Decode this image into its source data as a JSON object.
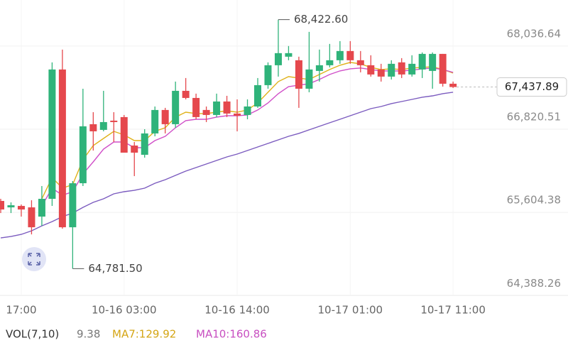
{
  "chart_data": {
    "type": "candlestick",
    "categories": [
      null,
      null,
      "17:00",
      null,
      null,
      null,
      null,
      null,
      null,
      null,
      null,
      null,
      "10-16 03:00",
      null,
      null,
      null,
      null,
      null,
      null,
      null,
      null,
      null,
      null,
      "10-16 14:00",
      null,
      null,
      null,
      null,
      null,
      null,
      null,
      null,
      null,
      null,
      "10-17 01:00",
      null,
      null,
      null,
      null,
      null,
      null,
      null,
      null,
      null,
      "10-17 11:00"
    ],
    "open": [
      65772,
      65678,
      65699,
      65678,
      65543,
      65803,
      67694,
      65387,
      66031,
      66894,
      66811,
      66946,
      66998,
      66582,
      66447,
      66759,
      67102,
      66894,
      67382,
      67278,
      67102,
      67029,
      67226,
      67050,
      67029,
      67153,
      67465,
      67756,
      67881,
      67829,
      67413,
      67673,
      67756,
      67829,
      67964,
      67829,
      67756,
      67694,
      67590,
      67798,
      67621,
      67694,
      67673,
      67922,
      67486
    ],
    "high": [
      65803,
      65751,
      65720,
      65782,
      65990,
      67798,
      67985,
      66063,
      67413,
      67070,
      67382,
      67070,
      67029,
      66634,
      66821,
      67153,
      67133,
      67517,
      67569,
      67341,
      67153,
      67341,
      67309,
      67257,
      67257,
      67569,
      67798,
      68422.6,
      68037,
      67881,
      68244,
      67985,
      68068,
      68109,
      68109,
      67964,
      67902,
      67777,
      67829,
      67860,
      67902,
      67943,
      67943,
      67922,
      67517
    ],
    "low": [
      65595,
      65595,
      65543,
      65283,
      65408,
      65699,
      65366,
      64781.5,
      65990,
      66509,
      66790,
      66634,
      66478,
      66135,
      66405,
      66717,
      66759,
      66842,
      67257,
      66966,
      66925,
      66998,
      66998,
      66790,
      66966,
      67133,
      67413,
      67590,
      67829,
      67133,
      67361,
      67517,
      67725,
      67777,
      67777,
      67652,
      67590,
      67517,
      67548,
      67569,
      67590,
      67569,
      67413,
      67444,
      67424
    ],
    "close": [
      65647,
      65709,
      65647,
      65387,
      65803,
      67694,
      65387,
      66031,
      66863,
      66790,
      66925,
      66925,
      66478,
      66478,
      66759,
      67102,
      66894,
      67382,
      67278,
      66998,
      67029,
      67226,
      67050,
      67018,
      67153,
      67465,
      67756,
      67933,
      67933,
      67413,
      67694,
      67756,
      67829,
      67964,
      67829,
      67756,
      67621,
      67590,
      67777,
      67621,
      67777,
      67922,
      67922,
      67486,
      67437.89
    ],
    "up_color": "#2fb37a",
    "down_color": "#e5484d",
    "lines": [
      {
        "color": "#e0b21a",
        "values": [
          null,
          null,
          null,
          null,
          65803,
          66114,
          65959,
          66011,
          66374,
          66582,
          66686,
          66790,
          66738,
          66655,
          66655,
          66790,
          66842,
          66998,
          67070,
          67050,
          67050,
          67070,
          67091,
          67070,
          67102,
          67205,
          67361,
          67517,
          67590,
          67569,
          67548,
          67621,
          67694,
          67756,
          67798,
          67777,
          67725,
          67694,
          67704,
          67694,
          67715,
          67725,
          67735,
          67694,
          67642
        ]
      },
      {
        "color": "#d04fc8",
        "values": [
          null,
          null,
          null,
          null,
          65699,
          65959,
          65855,
          65907,
          66166,
          66343,
          66530,
          66634,
          66634,
          66551,
          66551,
          66655,
          66717,
          66842,
          66946,
          66966,
          66966,
          66998,
          67018,
          67018,
          67029,
          67102,
          67205,
          67341,
          67444,
          67465,
          67486,
          67548,
          67621,
          67673,
          67704,
          67715,
          67694,
          67673,
          67673,
          67673,
          67683,
          67704,
          67715,
          67694,
          67652
        ]
      },
      {
        "color": "#7b5bbf",
        "values": [
          65231,
          65252,
          65283,
          65335,
          65408,
          65470,
          65543,
          65595,
          65678,
          65751,
          65803,
          65876,
          65907,
          65927,
          65959,
          66031,
          66083,
          66146,
          66208,
          66260,
          66312,
          66364,
          66416,
          66457,
          66509,
          66561,
          66613,
          66665,
          66717,
          66759,
          66811,
          66863,
          66915,
          66966,
          67018,
          67070,
          67122,
          67153,
          67195,
          67226,
          67257,
          67289,
          67309,
          67341,
          67361
        ]
      }
    ],
    "ylim": [
      64350,
      68710
    ],
    "yticks": [
      {
        "value": 68036.64,
        "label": "68,036.64"
      },
      {
        "value": 66820.51,
        "label": "66,820.51"
      },
      {
        "value": 65604.38,
        "label": "65,604.38"
      },
      {
        "value": 64388.26,
        "label": "64,388.26"
      }
    ],
    "grid": true,
    "max_label": "68,422.60",
    "min_label": "64,781.50",
    "last_label": "67,437.89",
    "volume_legend": {
      "title": "VOL(7,10)",
      "value": "9.38",
      "ma7": "MA7:129.92",
      "ma10": "MA10:160.86"
    }
  }
}
